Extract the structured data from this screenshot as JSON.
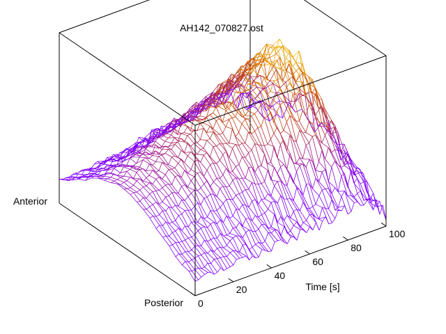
{
  "chart_data": {
    "type": "surface-3d-mesh",
    "title": "AH142_070827.ost",
    "x_axis": {
      "label": "Time [s]",
      "range": [
        0,
        100
      ],
      "ticks": [
        0,
        20,
        40,
        60,
        80,
        100
      ]
    },
    "y_axis": {
      "label": "",
      "end_labels": [
        "Anterior",
        "Posterior"
      ]
    },
    "z_axis": {
      "label": "",
      "ticks": []
    },
    "colormap": [
      "#8000ff",
      "#a01a8a",
      "#c04010",
      "#e08a00",
      "#ffe030"
    ],
    "mesh": {
      "time_samples": 61,
      "position_samples": 22
    },
    "grid": false,
    "legend": "none"
  }
}
